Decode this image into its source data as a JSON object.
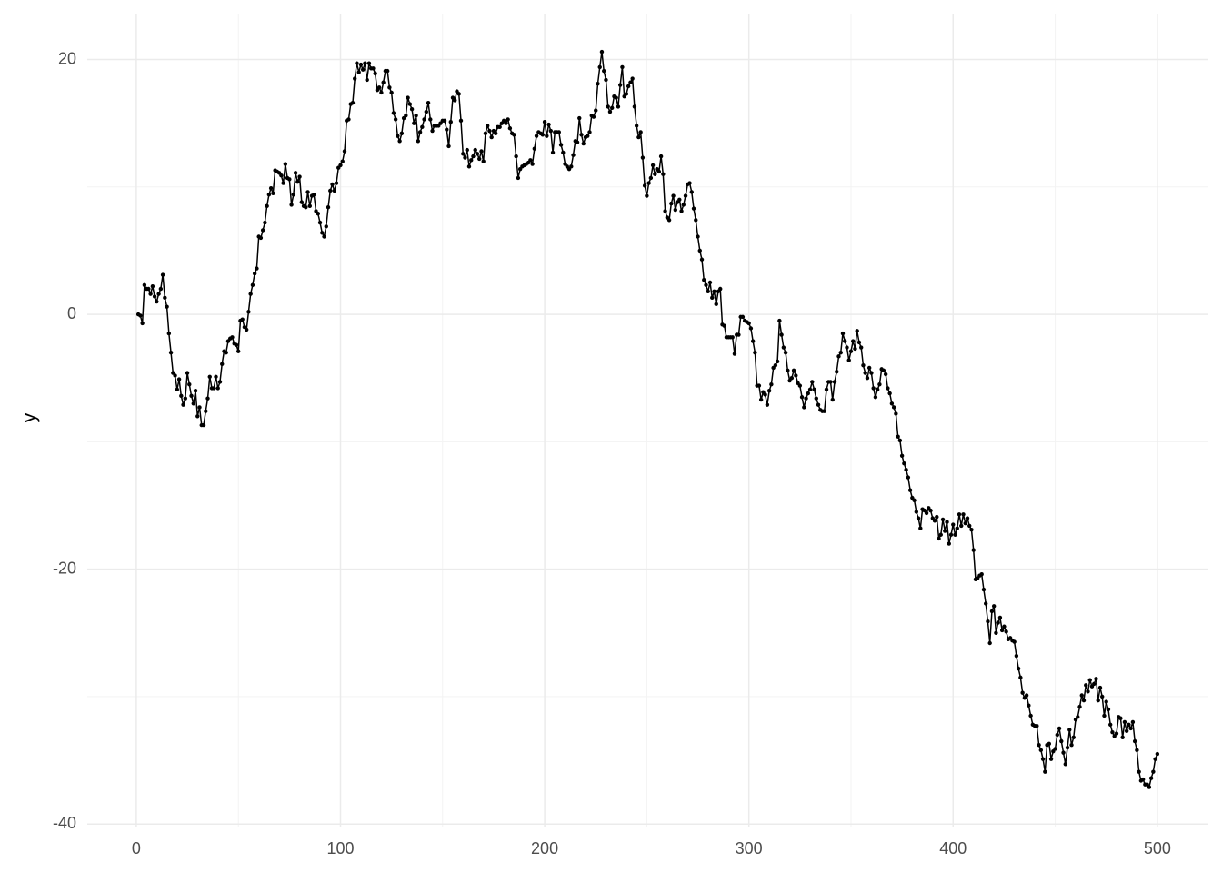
{
  "chart_data": {
    "type": "line",
    "y_label": "y",
    "color": "#000000",
    "grid": true,
    "xlim": [
      -24,
      525
    ],
    "ylim": [
      -40.2,
      23.6
    ],
    "xticks": [
      0,
      100,
      200,
      300,
      400,
      500
    ],
    "yticks": [
      -40,
      -20,
      0,
      20
    ],
    "minor_xticks": [
      50,
      150,
      250,
      350,
      450
    ],
    "minor_yticks": [
      -30,
      -10,
      10
    ],
    "x": [
      1,
      2,
      3,
      4,
      5,
      6,
      7,
      8,
      9,
      10,
      11,
      12,
      13,
      14,
      15,
      16,
      17,
      18,
      19,
      20,
      21,
      22,
      23,
      24,
      25,
      26,
      27,
      28,
      29,
      30,
      31,
      32,
      33,
      34,
      35,
      36,
      37,
      38,
      39,
      40,
      41,
      42,
      43,
      44,
      45,
      46,
      47,
      48,
      49,
      50,
      51,
      52,
      53,
      54,
      55,
      56,
      57,
      58,
      59,
      60,
      61,
      62,
      63,
      64,
      65,
      66,
      67,
      68,
      69,
      70,
      71,
      72,
      73,
      74,
      75,
      76,
      77,
      78,
      79,
      80,
      81,
      82,
      83,
      84,
      85,
      86,
      87,
      88,
      89,
      90,
      91,
      92,
      93,
      94,
      95,
      96,
      97,
      98,
      99,
      100,
      101,
      102,
      103,
      104,
      105,
      106,
      107,
      108,
      109,
      110,
      111,
      112,
      113,
      114,
      115,
      116,
      117,
      118,
      119,
      120,
      121,
      122,
      123,
      124,
      125,
      126,
      127,
      128,
      129,
      130,
      131,
      132,
      133,
      134,
      135,
      136,
      137,
      138,
      139,
      140,
      141,
      142,
      143,
      144,
      145,
      146,
      147,
      148,
      149,
      150,
      151,
      152,
      153,
      154,
      155,
      156,
      157,
      158,
      159,
      160,
      161,
      162,
      163,
      164,
      165,
      166,
      167,
      168,
      169,
      170,
      171,
      172,
      173,
      174,
      175,
      176,
      177,
      178,
      179,
      180,
      181,
      182,
      183,
      184,
      185,
      186,
      187,
      188,
      189,
      190,
      191,
      192,
      193,
      194,
      195,
      196,
      197,
      198,
      199,
      200,
      201,
      202,
      203,
      204,
      205,
      206,
      207,
      208,
      209,
      210,
      211,
      212,
      213,
      214,
      215,
      216,
      217,
      218,
      219,
      220,
      221,
      222,
      223,
      224,
      225,
      226,
      227,
      228,
      229,
      230,
      231,
      232,
      233,
      234,
      235,
      236,
      237,
      238,
      239,
      240,
      241,
      242,
      243,
      244,
      245,
      246,
      247,
      248,
      249,
      250,
      251,
      252,
      253,
      254,
      255,
      256,
      257,
      258,
      259,
      260,
      261,
      262,
      263,
      264,
      265,
      266,
      267,
      268,
      269,
      270,
      271,
      272,
      273,
      274,
      275,
      276,
      277,
      278,
      279,
      280,
      281,
      282,
      283,
      284,
      285,
      286,
      287,
      288,
      289,
      290,
      291,
      292,
      293,
      294,
      295,
      296,
      297,
      298,
      299,
      300,
      301,
      302,
      303,
      304,
      305,
      306,
      307,
      308,
      309,
      310,
      311,
      312,
      313,
      314,
      315,
      316,
      317,
      318,
      319,
      320,
      321,
      322,
      323,
      324,
      325,
      326,
      327,
      328,
      329,
      330,
      331,
      332,
      333,
      334,
      335,
      336,
      337,
      338,
      339,
      340,
      341,
      342,
      343,
      344,
      345,
      346,
      347,
      348,
      349,
      350,
      351,
      352,
      353,
      354,
      355,
      356,
      357,
      358,
      359,
      360,
      361,
      362,
      363,
      364,
      365,
      366,
      367,
      368,
      369,
      370,
      371,
      372,
      373,
      374,
      375,
      376,
      377,
      378,
      379,
      380,
      381,
      382,
      383,
      384,
      385,
      386,
      387,
      388,
      389,
      390,
      391,
      392,
      393,
      394,
      395,
      396,
      397,
      398,
      399,
      400,
      401,
      402,
      403,
      404,
      405,
      406,
      407,
      408,
      409,
      410,
      411,
      412,
      413,
      414,
      415,
      416,
      417,
      418,
      419,
      420,
      421,
      422,
      423,
      424,
      425,
      426,
      427,
      428,
      429,
      430,
      431,
      432,
      433,
      434,
      435,
      436,
      437,
      438,
      439,
      440,
      441,
      442,
      443,
      444,
      445,
      446,
      447,
      448,
      449,
      450,
      451,
      452,
      453,
      454,
      455,
      456,
      457,
      458,
      459,
      460,
      461,
      462,
      463,
      464,
      465,
      466,
      467,
      468,
      469,
      470,
      471,
      472,
      473,
      474,
      475,
      476,
      477,
      478,
      479,
      480,
      481,
      482,
      483,
      484,
      485,
      486,
      487,
      488,
      489,
      490,
      491,
      492,
      493,
      494,
      495,
      496,
      497,
      498,
      499,
      500
    ],
    "values": [
      0,
      -0.1,
      -0.7,
      2.3,
      2.0,
      2.0,
      1.6,
      2.2,
      1.4,
      1.0,
      1.6,
      2.0,
      3.1,
      1.3,
      0.6,
      -1.5,
      -3.0,
      -4.6,
      -4.8,
      -5.9,
      -5.1,
      -6.4,
      -7.1,
      -6.6,
      -4.6,
      -5.5,
      -6.4,
      -7.0,
      -6.0,
      -8.0,
      -7.3,
      -8.7,
      -8.7,
      -7.6,
      -6.6,
      -4.9,
      -5.8,
      -5.8,
      -4.9,
      -5.8,
      -5.3,
      -3.9,
      -2.9,
      -3.0,
      -2.1,
      -1.9,
      -1.8,
      -2.3,
      -2.4,
      -2.9,
      -0.5,
      -0.4,
      -1.0,
      -1.2,
      0.2,
      1.6,
      2.3,
      3.2,
      3.6,
      6.1,
      6.0,
      6.6,
      7.2,
      8.5,
      9.4,
      9.9,
      9.5,
      11.3,
      11.2,
      11.1,
      10.9,
      10.3,
      11.8,
      10.7,
      10.6,
      8.6,
      9.4,
      11.1,
      10.4,
      10.8,
      8.8,
      8.5,
      8.4,
      9.6,
      8.5,
      9.3,
      9.4,
      8.1,
      7.9,
      7.2,
      6.4,
      6.1,
      6.9,
      8.4,
      9.7,
      10.2,
      9.7,
      10.3,
      11.5,
      11.7,
      12.0,
      12.8,
      15.2,
      15.3,
      16.5,
      16.6,
      18.5,
      19.7,
      19.0,
      19.6,
      19.2,
      19.7,
      18.4,
      19.7,
      19.3,
      19.3,
      18.9,
      17.6,
      17.8,
      17.4,
      18.2,
      19.1,
      19.1,
      17.8,
      17.4,
      15.8,
      15.3,
      14.0,
      13.6,
      14.2,
      15.4,
      15.6,
      17.0,
      16.5,
      16.1,
      15.0,
      15.6,
      13.6,
      14.3,
      14.7,
      15.3,
      15.9,
      16.6,
      15.3,
      14.4,
      14.8,
      14.8,
      14.8,
      15.0,
      15.2,
      15.2,
      14.5,
      13.2,
      15.1,
      17.0,
      16.8,
      17.5,
      17.3,
      15.2,
      12.6,
      12.3,
      12.9,
      11.6,
      12.1,
      12.4,
      12.9,
      12.6,
      12.2,
      12.8,
      12.0,
      14.2,
      14.8,
      14.4,
      13.9,
      14.4,
      14.2,
      14.7,
      14.7,
      15.0,
      15.2,
      15.0,
      15.3,
      14.6,
      14.2,
      14.1,
      12.4,
      10.7,
      11.4,
      11.6,
      11.7,
      11.8,
      11.9,
      12.1,
      11.8,
      13.0,
      14.0,
      14.3,
      14.2,
      14.1,
      15.1,
      14.0,
      14.9,
      14.4,
      12.7,
      14.3,
      14.3,
      14.3,
      13.3,
      12.7,
      11.8,
      11.6,
      11.4,
      11.6,
      12.5,
      13.6,
      13.5,
      15.4,
      14.1,
      13.4,
      13.9,
      14.0,
      14.3,
      15.6,
      15.5,
      16.0,
      18.1,
      19.4,
      20.6,
      19.1,
      18.4,
      16.3,
      15.9,
      16.2,
      17.1,
      17.0,
      16.3,
      18.0,
      19.4,
      17.1,
      17.3,
      17.9,
      18.2,
      18.5,
      16.3,
      14.8,
      13.9,
      14.3,
      12.3,
      10.1,
      9.3,
      10.3,
      10.7,
      11.7,
      11.0,
      11.4,
      11.2,
      12.4,
      11.0,
      8.1,
      7.6,
      7.4,
      8.7,
      9.3,
      8.2,
      8.8,
      9.0,
      8.1,
      8.6,
      9.3,
      10.2,
      10.3,
      9.6,
      8.3,
      7.4,
      6.1,
      5.0,
      4.3,
      2.7,
      2.3,
      1.8,
      2.5,
      1.3,
      1.8,
      0.8,
      1.8,
      2.0,
      -0.8,
      -0.9,
      -1.8,
      -1.8,
      -1.8,
      -1.8,
      -3.1,
      -1.6,
      -1.6,
      -0.2,
      -0.2,
      -0.5,
      -0.6,
      -0.7,
      -1.1,
      -2.1,
      -3.0,
      -5.6,
      -5.6,
      -6.7,
      -6.1,
      -6.3,
      -7.1,
      -6.0,
      -5.5,
      -4.2,
      -4.0,
      -3.7,
      -0.5,
      -1.6,
      -2.6,
      -3.0,
      -4.4,
      -5.2,
      -5.0,
      -4.4,
      -4.8,
      -5.4,
      -5.6,
      -6.5,
      -7.3,
      -6.6,
      -6.2,
      -5.9,
      -5.3,
      -5.9,
      -6.6,
      -7.1,
      -7.5,
      -7.6,
      -7.6,
      -5.9,
      -5.3,
      -5.3,
      -6.7,
      -5.3,
      -4.5,
      -3.3,
      -3.0,
      -1.5,
      -2.1,
      -2.6,
      -3.6,
      -2.9,
      -2.1,
      -2.7,
      -1.3,
      -2.2,
      -2.6,
      -4.0,
      -4.6,
      -5.0,
      -4.2,
      -4.6,
      -5.8,
      -6.5,
      -5.9,
      -5.5,
      -4.3,
      -4.4,
      -4.7,
      -5.8,
      -6.2,
      -7.0,
      -7.3,
      -7.8,
      -9.6,
      -9.9,
      -11.1,
      -11.7,
      -12.2,
      -12.8,
      -13.8,
      -14.4,
      -14.6,
      -15.5,
      -16.0,
      -16.8,
      -15.3,
      -15.4,
      -15.6,
      -15.2,
      -15.4,
      -16.0,
      -16.2,
      -15.9,
      -17.6,
      -17.3,
      -16.1,
      -17.0,
      -16.3,
      -18.0,
      -17.3,
      -16.5,
      -17.3,
      -16.8,
      -15.7,
      -16.6,
      -15.7,
      -16.4,
      -16.0,
      -16.6,
      -16.9,
      -18.5,
      -20.8,
      -20.7,
      -20.5,
      -20.4,
      -21.6,
      -22.7,
      -24.1,
      -25.8,
      -23.3,
      -22.9,
      -25.0,
      -24.2,
      -23.8,
      -24.8,
      -24.5,
      -24.9,
      -25.5,
      -25.4,
      -25.6,
      -25.7,
      -26.8,
      -27.8,
      -28.5,
      -29.7,
      -30.1,
      -29.9,
      -30.7,
      -31.5,
      -32.2,
      -32.3,
      -32.3,
      -33.8,
      -34.2,
      -34.9,
      -35.9,
      -33.8,
      -33.7,
      -34.9,
      -34.3,
      -34.1,
      -33.0,
      -32.5,
      -33.5,
      -34.4,
      -35.3,
      -34.0,
      -32.6,
      -33.8,
      -33.2,
      -31.8,
      -31.6,
      -30.8,
      -29.9,
      -30.3,
      -29.1,
      -29.6,
      -28.7,
      -29.2,
      -29.0,
      -28.6,
      -30.3,
      -29.3,
      -30.0,
      -31.5,
      -30.4,
      -31.0,
      -32.2,
      -32.8,
      -33.1,
      -32.9,
      -31.6,
      -31.7,
      -33.2,
      -32.0,
      -32.7,
      -32.2,
      -32.5,
      -32.0,
      -33.5,
      -34.2,
      -35.9,
      -36.6,
      -36.5,
      -36.9,
      -36.9,
      -37.1,
      -36.4,
      -35.9,
      -34.9,
      -34.5
    ]
  }
}
